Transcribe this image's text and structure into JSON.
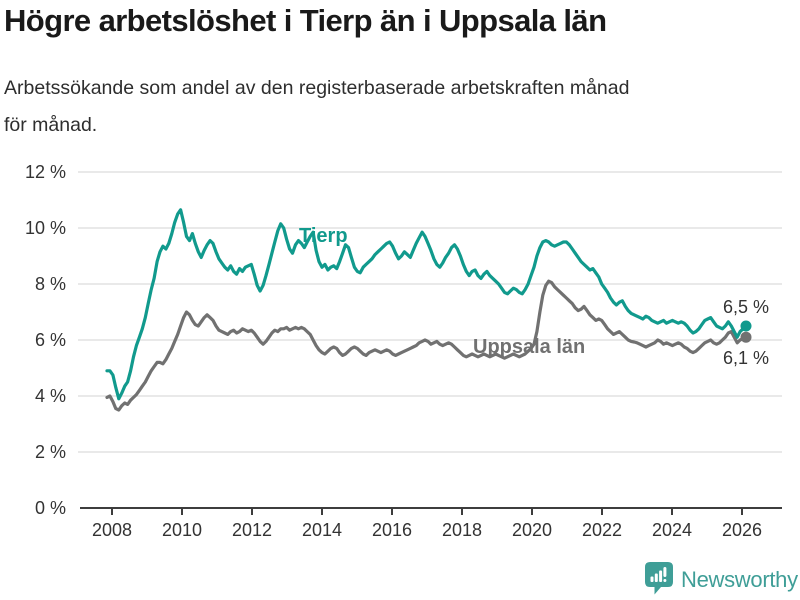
{
  "header": {
    "title": "Högre arbetslöshet i Tierp än i Uppsala län",
    "subtitle_line1": "Arbetssökande som andel av den registerbaserade arbetskraften månad",
    "subtitle_line2": "för månad."
  },
  "footer": {
    "brand": "Newsworthy",
    "logo_icon": "newsworthy-chart-bubble-icon",
    "brand_color": "#3f9e97"
  },
  "colors": {
    "tierp_line": "#119a8d",
    "uppsala_line": "#717171",
    "grid": "#e2e2e2",
    "axis": "#3d3d3d",
    "text_dark": "#333333"
  },
  "chart_data": {
    "type": "line",
    "title": "Högre arbetslöshet i Tierp än i Uppsala län",
    "subtitle": "Arbetssökande som andel av den registerbaserade arbetskraften månad för månad.",
    "unit": "%",
    "freq": "monthly",
    "x_start": "2008-01",
    "x_end": "2026-02",
    "ylim": [
      0,
      12
    ],
    "grid": true,
    "legend_position": "inline-labels",
    "y_axis": {
      "ticks": [
        {
          "label": "0 %",
          "value": 0
        },
        {
          "label": "2 %",
          "value": 2
        },
        {
          "label": "4 %",
          "value": 4
        },
        {
          "label": "6 %",
          "value": 6
        },
        {
          "label": "8 %",
          "value": 8
        },
        {
          "label": "10 %",
          "value": 10
        },
        {
          "label": "12 %",
          "value": 12
        }
      ]
    },
    "x_axis": {
      "ticks": [
        {
          "label": "2008",
          "year": 2008
        },
        {
          "label": "2010",
          "year": 2010
        },
        {
          "label": "2012",
          "year": 2012
        },
        {
          "label": "2014",
          "year": 2014
        },
        {
          "label": "2016",
          "year": 2016
        },
        {
          "label": "2018",
          "year": 2018
        },
        {
          "label": "2020",
          "year": 2020
        },
        {
          "label": "2022",
          "year": 2022
        },
        {
          "label": "2024",
          "year": 2024
        },
        {
          "label": "2026",
          "year": 2026
        }
      ]
    },
    "series": [
      {
        "id": "tierp",
        "name": "Tierp",
        "color": "#119a8d",
        "end_label": "6,5 %",
        "values": [
          4.9,
          4.9,
          4.75,
          4.3,
          3.9,
          4.1,
          4.35,
          4.5,
          4.9,
          5.4,
          5.8,
          6.1,
          6.4,
          6.8,
          7.3,
          7.8,
          8.2,
          8.8,
          9.15,
          9.35,
          9.25,
          9.45,
          9.8,
          10.2,
          10.5,
          10.65,
          10.2,
          9.7,
          9.55,
          9.8,
          9.45,
          9.15,
          8.95,
          9.2,
          9.4,
          9.55,
          9.45,
          9.15,
          8.9,
          8.75,
          8.6,
          8.5,
          8.65,
          8.45,
          8.35,
          8.55,
          8.45,
          8.6,
          8.65,
          8.7,
          8.35,
          7.95,
          7.75,
          7.95,
          8.3,
          8.7,
          9.1,
          9.5,
          9.9,
          10.15,
          10.0,
          9.6,
          9.25,
          9.1,
          9.4,
          9.55,
          9.45,
          9.3,
          9.5,
          9.7,
          9.85,
          9.2,
          8.8,
          8.6,
          8.7,
          8.5,
          8.6,
          8.65,
          8.55,
          8.8,
          9.1,
          9.4,
          9.3,
          8.95,
          8.6,
          8.45,
          8.4,
          8.6,
          8.7,
          8.8,
          8.9,
          9.05,
          9.15,
          9.25,
          9.35,
          9.45,
          9.5,
          9.35,
          9.1,
          8.9,
          9.0,
          9.15,
          9.05,
          8.95,
          9.2,
          9.45,
          9.65,
          9.85,
          9.7,
          9.45,
          9.2,
          8.9,
          8.7,
          8.6,
          8.75,
          8.95,
          9.1,
          9.3,
          9.4,
          9.25,
          9.0,
          8.7,
          8.45,
          8.3,
          8.45,
          8.5,
          8.3,
          8.2,
          8.35,
          8.45,
          8.3,
          8.2,
          8.1,
          8.0,
          7.85,
          7.7,
          7.65,
          7.75,
          7.85,
          7.8,
          7.7,
          7.65,
          7.8,
          8.0,
          8.3,
          8.6,
          9.0,
          9.3,
          9.5,
          9.55,
          9.5,
          9.4,
          9.35,
          9.4,
          9.45,
          9.5,
          9.5,
          9.4,
          9.25,
          9.1,
          8.95,
          8.8,
          8.7,
          8.6,
          8.5,
          8.55,
          8.4,
          8.25,
          8.0,
          7.85,
          7.7,
          7.5,
          7.35,
          7.25,
          7.35,
          7.4,
          7.2,
          7.05,
          6.95,
          6.9,
          6.85,
          6.8,
          6.75,
          6.85,
          6.8,
          6.7,
          6.65,
          6.6,
          6.65,
          6.7,
          6.6,
          6.65,
          6.7,
          6.65,
          6.6,
          6.65,
          6.6,
          6.5,
          6.35,
          6.25,
          6.3,
          6.4,
          6.55,
          6.7,
          6.75,
          6.8,
          6.65,
          6.5,
          6.45,
          6.4,
          6.5,
          6.65,
          6.5,
          6.3,
          6.1,
          6.3,
          6.4,
          6.5
        ]
      },
      {
        "id": "uppsala-lan",
        "name": "Uppsala län",
        "color": "#717171",
        "end_label": "6,1 %",
        "values": [
          3.95,
          4.0,
          3.8,
          3.55,
          3.5,
          3.65,
          3.75,
          3.7,
          3.85,
          3.95,
          4.05,
          4.2,
          4.35,
          4.5,
          4.7,
          4.9,
          5.05,
          5.2,
          5.2,
          5.15,
          5.3,
          5.5,
          5.7,
          5.95,
          6.2,
          6.5,
          6.8,
          7.0,
          6.9,
          6.7,
          6.55,
          6.5,
          6.65,
          6.8,
          6.9,
          6.8,
          6.7,
          6.5,
          6.35,
          6.3,
          6.25,
          6.2,
          6.3,
          6.35,
          6.25,
          6.3,
          6.4,
          6.35,
          6.3,
          6.35,
          6.25,
          6.1,
          5.95,
          5.85,
          5.95,
          6.1,
          6.25,
          6.35,
          6.3,
          6.4,
          6.4,
          6.45,
          6.35,
          6.4,
          6.45,
          6.4,
          6.45,
          6.4,
          6.3,
          6.2,
          6.0,
          5.8,
          5.65,
          5.55,
          5.5,
          5.6,
          5.7,
          5.75,
          5.7,
          5.55,
          5.45,
          5.5,
          5.6,
          5.7,
          5.75,
          5.7,
          5.6,
          5.5,
          5.45,
          5.55,
          5.6,
          5.65,
          5.6,
          5.55,
          5.6,
          5.65,
          5.6,
          5.5,
          5.45,
          5.5,
          5.55,
          5.6,
          5.65,
          5.7,
          5.75,
          5.8,
          5.9,
          5.95,
          6.0,
          5.95,
          5.85,
          5.9,
          5.95,
          5.85,
          5.8,
          5.85,
          5.9,
          5.85,
          5.75,
          5.65,
          5.55,
          5.45,
          5.4,
          5.45,
          5.5,
          5.45,
          5.4,
          5.45,
          5.5,
          5.45,
          5.4,
          5.45,
          5.5,
          5.45,
          5.4,
          5.35,
          5.4,
          5.45,
          5.5,
          5.45,
          5.4,
          5.45,
          5.5,
          5.6,
          5.7,
          5.85,
          6.3,
          7.0,
          7.6,
          7.95,
          8.1,
          8.05,
          7.9,
          7.8,
          7.7,
          7.6,
          7.5,
          7.4,
          7.3,
          7.15,
          7.05,
          7.1,
          7.2,
          7.05,
          6.9,
          6.8,
          6.7,
          6.75,
          6.7,
          6.55,
          6.4,
          6.3,
          6.2,
          6.25,
          6.3,
          6.2,
          6.1,
          6.0,
          5.95,
          5.93,
          5.9,
          5.85,
          5.8,
          5.75,
          5.8,
          5.85,
          5.9,
          6.0,
          5.95,
          5.85,
          5.9,
          5.85,
          5.8,
          5.85,
          5.9,
          5.85,
          5.75,
          5.7,
          5.6,
          5.55,
          5.6,
          5.7,
          5.8,
          5.9,
          5.95,
          6.0,
          5.9,
          5.85,
          5.9,
          6.0,
          6.1,
          6.25,
          6.3,
          6.1,
          5.9,
          6.0,
          6.05,
          6.1
        ]
      }
    ]
  }
}
